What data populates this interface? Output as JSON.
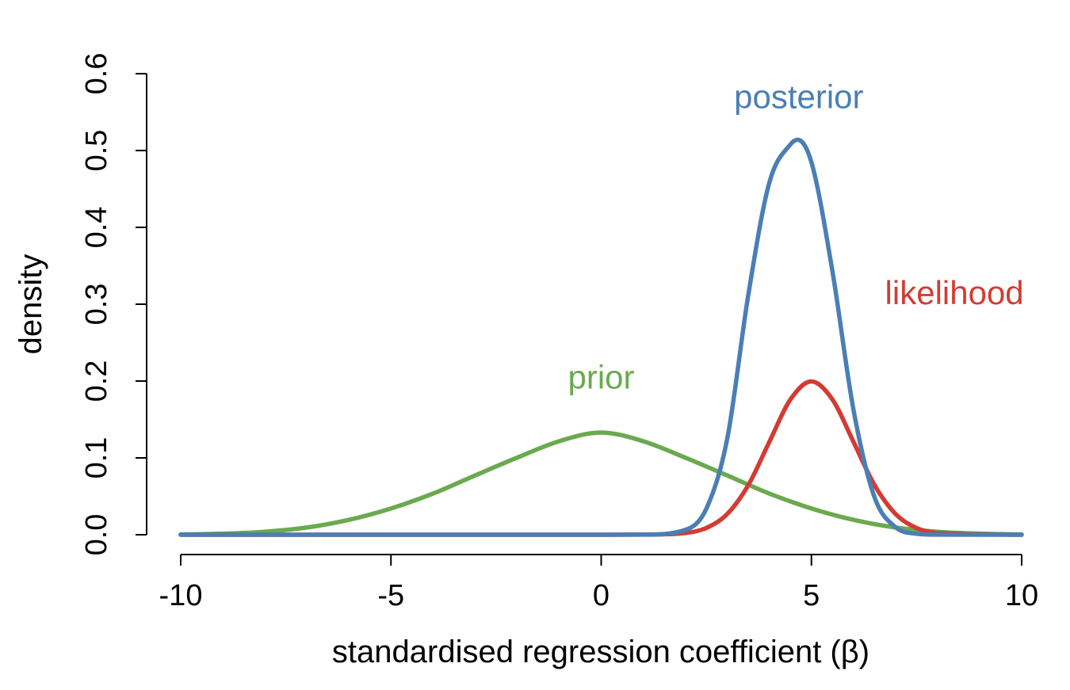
{
  "chart_data": {
    "type": "line",
    "xlabel": "standardised regression coefficient (β)",
    "ylabel": "density",
    "xlim": [
      -10,
      10
    ],
    "ylim": [
      0,
      0.6
    ],
    "xticks": [
      -10,
      -5,
      0,
      5,
      10
    ],
    "xtick_labels": [
      "-10",
      "-5",
      "0",
      "5",
      "10"
    ],
    "yticks": [
      0.0,
      0.1,
      0.2,
      0.3,
      0.4,
      0.5,
      0.6
    ],
    "ytick_labels": [
      "0.0",
      "0.1",
      "0.2",
      "0.3",
      "0.4",
      "0.5",
      "0.6"
    ],
    "grid": false,
    "legend": "none",
    "series": [
      {
        "name": "prior",
        "color": "#6aaa4f",
        "x": [
          -10,
          -9,
          -8,
          -7,
          -6,
          -5,
          -4,
          -3,
          -2,
          -1,
          0,
          1,
          2,
          3,
          4,
          5,
          6,
          7,
          8,
          9,
          10
        ],
        "y": [
          0.0004,
          0.0014,
          0.0039,
          0.0094,
          0.0194,
          0.0342,
          0.0535,
          0.0771,
          0.1003,
          0.1217,
          0.133,
          0.1217,
          0.1003,
          0.0771,
          0.0535,
          0.0342,
          0.0194,
          0.0094,
          0.0039,
          0.0014,
          0.0004
        ]
      },
      {
        "name": "likelihood",
        "color": "#d43b33",
        "x": [
          -10,
          0,
          1,
          2,
          2.5,
          3,
          3.5,
          4,
          4.5,
          5,
          5.5,
          6,
          6.5,
          7,
          7.5,
          8,
          10
        ],
        "y": [
          0.0,
          0.0,
          0.0002,
          0.0022,
          0.0088,
          0.0271,
          0.0647,
          0.1209,
          0.176,
          0.1995,
          0.176,
          0.1209,
          0.0647,
          0.0271,
          0.0088,
          0.0022,
          0.0
        ]
      },
      {
        "name": "posterior",
        "color": "#4a7fb5",
        "x": [
          -10,
          0,
          1,
          2,
          2.5,
          3,
          3.5,
          4,
          4.5,
          4.67,
          5,
          5.5,
          6,
          6.5,
          7,
          7.5,
          8,
          10
        ],
        "y": [
          0.0,
          0.0,
          0.0001,
          0.0063,
          0.0338,
          0.1256,
          0.3125,
          0.4584,
          0.5078,
          0.514,
          0.4848,
          0.3428,
          0.1628,
          0.0489,
          0.0099,
          0.0013,
          0.0001,
          0.0
        ]
      }
    ],
    "annotations": [
      {
        "text": "posterior",
        "color": "#4a7fb5",
        "x": 4.7,
        "y": 0.555
      },
      {
        "text": "likelihood",
        "color": "#d43b33",
        "x": 8.4,
        "y": 0.3
      },
      {
        "text": "prior",
        "color": "#6aaa4f",
        "x": 0,
        "y": 0.19
      }
    ]
  }
}
